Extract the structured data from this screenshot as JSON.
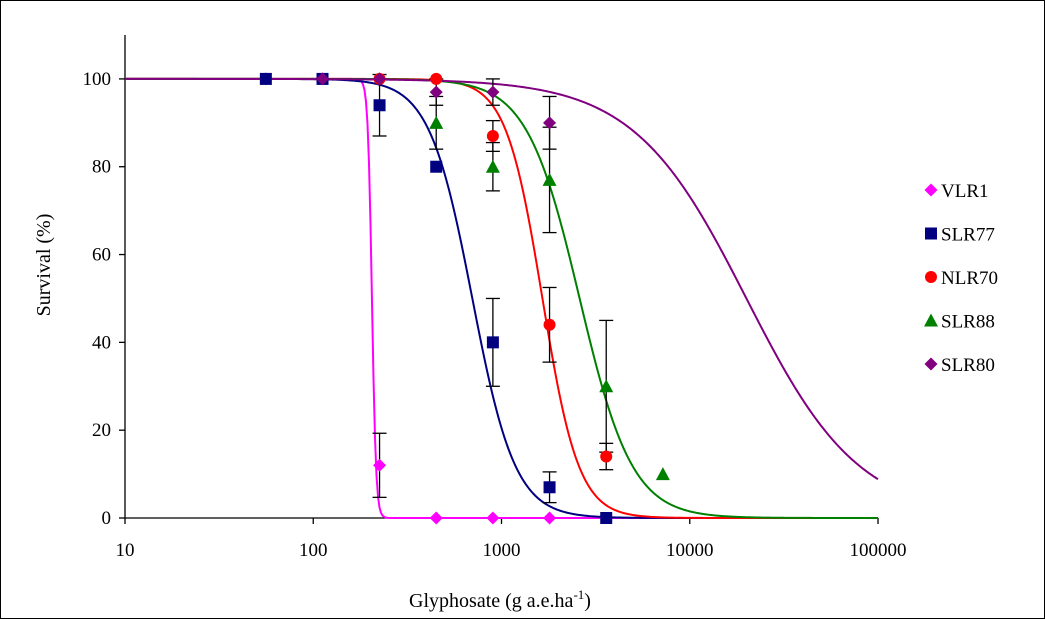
{
  "chart_data": {
    "type": "scatter",
    "title": "",
    "xlabel": "Glyphosate (g a.e.ha",
    "xlabel_superscript": "-1",
    "xlabel_suffix": ")",
    "ylabel": "Survival (%)",
    "xscale": "log",
    "xlim": [
      10,
      100000
    ],
    "ylim": [
      0,
      110
    ],
    "x_ticks": [
      10,
      100,
      1000,
      10000,
      100000
    ],
    "x_tick_labels": [
      "10",
      "100",
      "1000",
      "10000",
      "100000"
    ],
    "y_ticks": [
      0,
      20,
      40,
      60,
      80,
      100
    ],
    "y_tick_labels": [
      "0",
      "20",
      "40",
      "60",
      "80",
      "100"
    ],
    "grid": false,
    "legend_position": "right",
    "series": [
      {
        "name": "VLR1",
        "color": "#ff00ff",
        "marker": "diamond",
        "points": [
          {
            "x": 56,
            "y": 100
          },
          {
            "x": 225,
            "y": 12,
            "err": 7.3
          },
          {
            "x": 450,
            "y": 0
          },
          {
            "x": 900,
            "y": 0
          },
          {
            "x": 1800,
            "y": 0
          }
        ],
        "fit": {
          "ed50": 205,
          "slope": 40
        }
      },
      {
        "name": "SLR77",
        "color": "#000080",
        "marker": "square",
        "points": [
          {
            "x": 56,
            "y": 100
          },
          {
            "x": 112,
            "y": 100
          },
          {
            "x": 225,
            "y": 94,
            "err": 7
          },
          {
            "x": 450,
            "y": 80
          },
          {
            "x": 900,
            "y": 40,
            "err": 10
          },
          {
            "x": 1800,
            "y": 7,
            "err": 3.5
          },
          {
            "x": 3600,
            "y": 0
          }
        ],
        "fit": {
          "ed50": 700,
          "slope": 3.8
        }
      },
      {
        "name": "NLR70",
        "color": "#ff0000",
        "marker": "circle",
        "points": [
          {
            "x": 225,
            "y": 100
          },
          {
            "x": 450,
            "y": 100
          },
          {
            "x": 900,
            "y": 87,
            "err": 3.5
          },
          {
            "x": 1800,
            "y": 44,
            "err": 8.5
          },
          {
            "x": 3600,
            "y": 14,
            "err": 3
          }
        ],
        "fit": {
          "ed50": 1650,
          "slope": 4.5
        }
      },
      {
        "name": "SLR88",
        "color": "#008000",
        "marker": "triangle",
        "points": [
          {
            "x": 450,
            "y": 90,
            "err": 6
          },
          {
            "x": 900,
            "y": 80,
            "err": 5.5
          },
          {
            "x": 1800,
            "y": 77,
            "err": 12
          },
          {
            "x": 3600,
            "y": 30,
            "err": 15
          },
          {
            "x": 7200,
            "y": 10
          }
        ],
        "fit": {
          "ed50": 2600,
          "slope": 3.1
        }
      },
      {
        "name": "SLR80",
        "color": "#800080",
        "marker": "diamond",
        "points": [
          {
            "x": 112,
            "y": 100
          },
          {
            "x": 225,
            "y": 100
          },
          {
            "x": 450,
            "y": 97,
            "err": 3
          },
          {
            "x": 900,
            "y": 97,
            "err": 3
          },
          {
            "x": 1800,
            "y": 90,
            "err": 6
          }
        ],
        "fit": {
          "ed50": 20000,
          "slope": 1.45
        }
      }
    ]
  }
}
